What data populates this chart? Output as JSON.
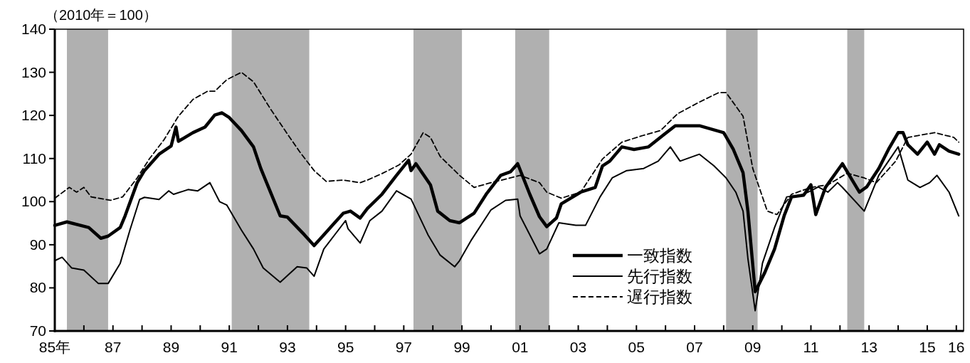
{
  "chart_data": {
    "type": "line",
    "ylabel": "（2010年＝100）",
    "xlim": [
      "1985-01",
      "2016-04"
    ],
    "ylim": [
      70,
      140
    ],
    "yticks": [
      70,
      80,
      90,
      100,
      110,
      120,
      130,
      140
    ],
    "xticks": [
      {
        "value": "1985",
        "label": "85年"
      },
      {
        "value": "1986",
        "label": null
      },
      {
        "value": "1987",
        "label": "87"
      },
      {
        "value": "1988",
        "label": null
      },
      {
        "value": "1989",
        "label": "89"
      },
      {
        "value": "1990",
        "label": null
      },
      {
        "value": "1991",
        "label": "91"
      },
      {
        "value": "1992",
        "label": null
      },
      {
        "value": "1993",
        "label": "93"
      },
      {
        "value": "1994",
        "label": null
      },
      {
        "value": "1995",
        "label": "95"
      },
      {
        "value": "1996",
        "label": null
      },
      {
        "value": "1997",
        "label": "97"
      },
      {
        "value": "1998",
        "label": null
      },
      {
        "value": "1999",
        "label": "99"
      },
      {
        "value": "2000",
        "label": null
      },
      {
        "value": "2001",
        "label": "01"
      },
      {
        "value": "2002",
        "label": null
      },
      {
        "value": "2003",
        "label": "03"
      },
      {
        "value": "2004",
        "label": null
      },
      {
        "value": "2005",
        "label": "05"
      },
      {
        "value": "2006",
        "label": null
      },
      {
        "value": "2007",
        "label": "07"
      },
      {
        "value": "2008",
        "label": null
      },
      {
        "value": "2009",
        "label": "09"
      },
      {
        "value": "2010",
        "label": null
      },
      {
        "value": "2011",
        "label": "11"
      },
      {
        "value": "2012",
        "label": null
      },
      {
        "value": "2013",
        "label": "13"
      },
      {
        "value": "2014",
        "label": null
      },
      {
        "value": "2015",
        "label": "15"
      },
      {
        "value": "2016",
        "label": "16"
      }
    ],
    "bands": [
      {
        "axis": "x",
        "from": "1985-06",
        "to": "1986-11",
        "color": "#b0b0b0"
      },
      {
        "axis": "x",
        "from": "1991-02",
        "to": "1993-10",
        "color": "#b0b0b0"
      },
      {
        "axis": "x",
        "from": "1997-05",
        "to": "1999-01",
        "color": "#b0b0b0"
      },
      {
        "axis": "x",
        "from": "2000-11",
        "to": "2002-01",
        "color": "#b0b0b0"
      },
      {
        "axis": "x",
        "from": "2008-02",
        "to": "2009-03",
        "color": "#b0b0b0"
      },
      {
        "axis": "x",
        "from": "2012-04",
        "to": "2012-11",
        "color": "#b0b0b0"
      }
    ],
    "legend": "bottom right",
    "series": [
      {
        "name": "一致指数",
        "color": "#000000",
        "line_style": "solid",
        "x": [
          "1985-01",
          "1985-06",
          "1986-03",
          "1986-08",
          "1986-11",
          "1987-04",
          "1987-06",
          "1987-11",
          "1988-02",
          "1988-08",
          "1989-01",
          "1989-03",
          "1989-04",
          "1989-10",
          "1990-03",
          "1990-07",
          "1990-10",
          "1991-01",
          "1991-06",
          "1991-11",
          "1992-02",
          "1992-06",
          "1992-10",
          "1993-01",
          "1993-08",
          "1993-12",
          "1994-04",
          "1994-08",
          "1994-12",
          "1995-03",
          "1995-07",
          "1995-10",
          "1996-04",
          "1996-10",
          "1997-03",
          "1997-04",
          "1997-06",
          "1997-12",
          "1998-03",
          "1998-08",
          "1998-12",
          "1999-06",
          "1999-11",
          "2000-05",
          "2000-09",
          "2000-12",
          "2001-05",
          "2001-09",
          "2001-12",
          "2002-04",
          "2002-06",
          "2003-02",
          "2003-08",
          "2003-11",
          "2004-02",
          "2004-07",
          "2004-12",
          "2005-06",
          "2005-12",
          "2006-05",
          "2007-03",
          "2008-01",
          "2008-05",
          "2008-09",
          "2008-11",
          "2009-02",
          "2009-06",
          "2009-10",
          "2010-02",
          "2010-05",
          "2010-10",
          "2011-01",
          "2011-03",
          "2011-07",
          "2012-02",
          "2012-09",
          "2012-12",
          "2013-05",
          "2013-09",
          "2014-01",
          "2014-03",
          "2014-05",
          "2014-09",
          "2015-01",
          "2015-04",
          "2015-06",
          "2015-10",
          "2016-02"
        ],
        "values": [
          94.5,
          95.3,
          94.0,
          91.5,
          92.0,
          94.0,
          96.7,
          104.4,
          107.2,
          111.0,
          112.9,
          117.3,
          114.0,
          116.0,
          117.3,
          120.1,
          120.6,
          119.5,
          116.5,
          112.7,
          107.7,
          102.2,
          96.7,
          96.4,
          92.3,
          89.8,
          92.3,
          94.8,
          97.3,
          97.8,
          96.2,
          98.4,
          101.7,
          106.1,
          109.6,
          107.2,
          108.8,
          103.9,
          97.8,
          95.6,
          95.1,
          97.3,
          101.7,
          106.1,
          106.9,
          108.8,
          101.7,
          96.5,
          94.2,
          96.2,
          99.5,
          102.2,
          103.3,
          108.3,
          109.4,
          112.7,
          112.1,
          112.7,
          115.4,
          117.6,
          117.6,
          116.0,
          112.1,
          106.7,
          97.8,
          79.1,
          83.6,
          89.0,
          96.8,
          101.1,
          101.5,
          103.9,
          97.0,
          103.3,
          108.8,
          102.2,
          103.4,
          107.7,
          112.1,
          116.0,
          116.0,
          113.2,
          111.0,
          113.8,
          111.0,
          113.2,
          111.7,
          111.0
        ]
      },
      {
        "name": "先行指数",
        "color": "#000000",
        "line_style": "solid",
        "x": [
          "1985-01",
          "1985-04",
          "1985-08",
          "1986-01",
          "1986-07",
          "1986-11",
          "1987-04",
          "1987-08",
          "1987-12",
          "1988-02",
          "1988-08",
          "1988-12",
          "1989-02",
          "1989-08",
          "1989-12",
          "1990-05",
          "1990-09",
          "1990-12",
          "1991-06",
          "1991-11",
          "1992-03",
          "1992-10",
          "1993-05",
          "1993-09",
          "1993-12",
          "1994-04",
          "1994-10",
          "1995-01",
          "1995-02",
          "1995-07",
          "1995-11",
          "1996-04",
          "1996-10",
          "1997-04",
          "1997-11",
          "1998-04",
          "1998-10",
          "1998-12",
          "1999-05",
          "2000-01",
          "2000-07",
          "2000-12",
          "2001-01",
          "2001-09",
          "2001-12",
          "2002-05",
          "2002-12",
          "2003-04",
          "2003-10",
          "2004-03",
          "2004-09",
          "2005-04",
          "2005-10",
          "2006-03",
          "2006-07",
          "2007-03",
          "2007-09",
          "2008-02",
          "2008-06",
          "2008-09",
          "2008-11",
          "2009-02",
          "2009-05",
          "2009-10",
          "2010-03",
          "2010-09",
          "2011-01",
          "2011-04",
          "2011-08",
          "2011-12",
          "2012-02",
          "2012-11",
          "2013-05",
          "2014-01",
          "2014-05",
          "2014-10",
          "2015-02",
          "2015-05",
          "2015-10",
          "2016-02"
        ],
        "values": [
          86.3,
          87.1,
          84.6,
          84.1,
          81.0,
          81.0,
          85.7,
          93.4,
          100.5,
          101.0,
          100.5,
          102.5,
          101.7,
          102.8,
          102.5,
          104.4,
          100.0,
          99.2,
          93.4,
          89.0,
          84.6,
          81.3,
          84.9,
          84.6,
          82.7,
          89.0,
          93.4,
          95.6,
          93.7,
          90.4,
          95.6,
          97.8,
          102.5,
          100.6,
          92.3,
          87.6,
          84.9,
          86.3,
          91.2,
          98.1,
          100.3,
          100.6,
          96.7,
          87.9,
          89.0,
          95.1,
          94.5,
          94.5,
          101.1,
          105.5,
          107.2,
          107.7,
          109.4,
          112.7,
          109.4,
          111.0,
          108.3,
          105.5,
          102.2,
          97.8,
          86.8,
          74.7,
          85.7,
          94.0,
          101.1,
          101.5,
          102.5,
          103.4,
          102.2,
          104.4,
          103.3,
          97.8,
          106.1,
          112.7,
          105.0,
          103.3,
          104.4,
          106.1,
          102.2,
          96.7
        ]
      },
      {
        "name": "遅行指数",
        "color": "#000000",
        "line_style": "dashed",
        "x": [
          "1985-01",
          "1985-07",
          "1985-10",
          "1986-01",
          "1986-04",
          "1986-12",
          "1987-05",
          "1987-11",
          "1988-04",
          "1988-10",
          "1989-04",
          "1989-10",
          "1990-04",
          "1990-07",
          "1990-12",
          "1991-06",
          "1991-11",
          "1992-06",
          "1992-12",
          "1993-06",
          "1993-12",
          "1994-05",
          "1994-12",
          "1995-07",
          "1995-10",
          "1996-04",
          "1996-11",
          "1997-04",
          "1997-09",
          "1997-12",
          "1998-04",
          "1998-12",
          "1999-06",
          "2000-01",
          "2000-09",
          "2001-01",
          "2001-09",
          "2001-12",
          "2002-06",
          "2003-02",
          "2003-11",
          "2004-07",
          "2005-04",
          "2005-11",
          "2006-06",
          "2007-03",
          "2007-11",
          "2008-02",
          "2008-09",
          "2009-01",
          "2009-07",
          "2009-11",
          "2010-05",
          "2011-01",
          "2011-08",
          "2012-04",
          "2012-11",
          "2013-04",
          "2013-12",
          "2014-05",
          "2015-04",
          "2015-12",
          "2016-02"
        ],
        "values": [
          100.8,
          103.3,
          102.2,
          103.3,
          101.1,
          100.3,
          101.1,
          105.5,
          109.9,
          114.3,
          119.8,
          123.7,
          125.6,
          125.6,
          128.3,
          130.0,
          127.8,
          121.5,
          116.5,
          111.6,
          107.2,
          104.7,
          105.0,
          104.4,
          105.0,
          106.5,
          108.5,
          111.0,
          116.0,
          114.9,
          110.5,
          106.1,
          103.3,
          104.4,
          105.5,
          106.1,
          104.4,
          102.2,
          100.8,
          102.2,
          109.9,
          113.8,
          115.4,
          116.5,
          120.4,
          123.1,
          125.3,
          125.3,
          119.8,
          107.7,
          97.8,
          97.0,
          101.7,
          103.3,
          103.9,
          106.6,
          105.5,
          104.4,
          109.4,
          114.9,
          116.0,
          114.9,
          113.8
        ]
      }
    ]
  }
}
